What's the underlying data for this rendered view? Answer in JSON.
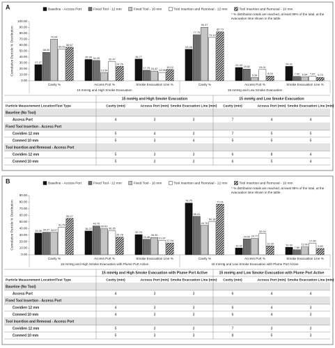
{
  "panel_labels": [
    "A",
    "B"
  ],
  "chart_data": [
    {
      "type": "bar",
      "y_label": "Cumulative Particle % Distribution",
      "note": "* % distribution totals are reached, at least 99% of the total, at the evacuation time shown in the table.",
      "categories": [
        "Cavity %",
        "Access Port %",
        "Smoke Evacuation Line %",
        "Cavity %",
        "Access Port %",
        "Smoke Evacuation Line %"
      ],
      "category_groups": [
        "15 mmHg and High Smoke Evacuation",
        "15 mmHg and Low Smoke Evacuation"
      ],
      "ylim": [
        0,
        100
      ],
      "yticks": [
        {
          "value": 0,
          "label": "0.00"
        },
        {
          "value": 10,
          "label": "10.00"
        },
        {
          "value": 20,
          "label": "20.00"
        },
        {
          "value": 30,
          "label": "30.00"
        },
        {
          "value": 40,
          "label": "40.00"
        },
        {
          "value": 50,
          "label": "50.00"
        },
        {
          "value": 60,
          "label": "60.00"
        },
        {
          "value": 70,
          "label": "70.00"
        },
        {
          "value": 80,
          "label": "80.00"
        },
        {
          "value": 90,
          "label": "90.00"
        },
        {
          "value": 100,
          "label": "100.00"
        }
      ],
      "series": [
        {
          "name": "Baseline - Access Port",
          "color": "#111111",
          "values": [
            27.27,
            35.96,
            36.77,
            53.26,
            22.43,
            24.31
          ],
          "value_labels": [
            "27.27",
            "35.96",
            "36.77",
            "53.26",
            "22.43",
            "24.31"
          ]
        },
        {
          "name": "Fixed Tool - 12 mm",
          "color": "#6e6e6e",
          "values": [
            48.0,
            34.25,
            17.75,
            77.75,
            19.82,
            7.42
          ],
          "value_labels": [
            "48.00",
            "34.25",
            "17.75",
            "77.75",
            "19.82",
            "7.42"
          ]
        },
        {
          "name": "Fixed Tool - 10 mm",
          "color": "#c4c4c4",
          "values": [
            70.04,
            13.54,
            16.42,
            90.37,
            5.34,
            6.54
          ],
          "value_labels": [
            "70.04",
            "13.54",
            "16.42",
            "90.37",
            "5.34",
            "6.54"
          ]
        },
        {
          "name": "Tool Insertion and Removal - 12 mm",
          "color": "#ffffff",
          "values": [
            53.43,
            32.47,
            13.98,
            73.13,
            19.01,
            7.87
          ],
          "value_labels": [
            "53.43",
            "32.47",
            "13.98",
            "73.13",
            "19.01",
            "7.87"
          ]
        },
        {
          "name": "Tool Insertion and Removal - 10 mm",
          "color": "#ffffff",
          "hatch": true,
          "values": [
            56.67,
            24.26,
            19.12,
            82.73,
            8.04,
            5.73
          ],
          "value_labels": [
            "56.67",
            "24.26",
            "19.12",
            "82.73",
            "8.04",
            "5.73"
          ]
        }
      ]
    },
    {
      "type": "bar",
      "y_label": "Cumulative Particle % Distribution",
      "note": "* % distribution totals are reached, at least 95% of the total, at the evacuation time shown in the table.",
      "categories": [
        "Cavity %",
        "Access Port %",
        "Smoke Evacuation Line %",
        "Cavity %",
        "Access Port %",
        "Smoke Evacuation Line %"
      ],
      "category_groups": [
        "15 mmHg and High Smoke Evacuation with Plume Port Active",
        "15 mmHg and Low Smoke Evacuation with Plume Port Active"
      ],
      "ylim": [
        0,
        90
      ],
      "yticks": [
        {
          "value": 0,
          "label": "0.00"
        },
        {
          "value": 10,
          "label": "10.00"
        },
        {
          "value": 20,
          "label": "20.00"
        },
        {
          "value": 30,
          "label": "30.00"
        },
        {
          "value": 40,
          "label": "40.00"
        },
        {
          "value": 50,
          "label": "50.00"
        },
        {
          "value": 60,
          "label": "60.00"
        },
        {
          "value": 70,
          "label": "70.00"
        },
        {
          "value": 80,
          "label": "80.00"
        },
        {
          "value": 90,
          "label": "90.00"
        }
      ],
      "series": [
        {
          "name": "Baseline - Access Port",
          "color": "#111111",
          "values": [
            33.08,
            36.22,
            30.7,
            78.75,
            10.32,
            11.33
          ],
          "value_labels": [
            "33.08",
            "36.22",
            "30.70",
            "78.75",
            "10.32",
            "11.33"
          ]
        },
        {
          "name": "Fixed Tool - 12 mm",
          "color": "#6e6e6e",
          "values": [
            34.27,
            43.79,
            23.48,
            58.41,
            24.0,
            7.6
          ],
          "value_labels": [
            "34.27",
            "43.79",
            "23.48",
            "58.41",
            "24.00",
            "7.60"
          ]
        },
        {
          "name": "Fixed Tool - 10 mm",
          "color": "#c4c4c4",
          "values": [
            34.07,
            39.63,
            26.3,
            44.76,
            24.77,
            12.0
          ],
          "value_labels": [
            "34.07",
            "39.63",
            "26.30",
            "44.76",
            "24.77",
            "12.00"
          ]
        },
        {
          "name": "Tool Insertion and Removal - 12 mm",
          "color": "#ffffff",
          "values": [
            41.79,
            36.35,
            21.87,
            50.36,
            32.04,
            17.6
          ],
          "value_labels": [
            "41.79",
            "36.35",
            "21.87",
            "50.36",
            "32.04",
            "17.60"
          ]
        },
        {
          "name": "Tool Insertion and Removal - 10 mm",
          "color": "#ffffff",
          "hatch": true,
          "values": [
            55.27,
            26.78,
            17.94,
            77.01,
            13.39,
            9.6
          ],
          "value_labels": [
            "55.27",
            "26.78",
            "17.94",
            "77.01",
            "13.39",
            "9.60"
          ]
        }
      ]
    }
  ],
  "tables": [
    {
      "header_groups": [
        "15 mmHg and High Smoke Evacuation",
        "15 mmHg and Low Smoke Evacuation"
      ],
      "columns": [
        "Particle Measurement Location/Test Type",
        "Cavity (min)",
        "Access Port (min)",
        "Smoke Evacuation Line (min)",
        "Cavity (min)",
        "Access Port (min)",
        "Smoke Evacuation Line (min)"
      ],
      "rows": [
        [
          "Baseline (No Tool)"
        ],
        [
          "Access Port",
          4,
          3,
          3,
          7,
          4,
          4
        ],
        [
          "Fixed Tool Insertion - Access Port"
        ],
        [
          "Covidien 12 mm",
          5,
          4,
          3,
          7,
          5,
          5
        ],
        [
          "Conmed 10 mm",
          5,
          3,
          4,
          5,
          5,
          5
        ],
        [
          "Tool Insertion and Removal - Access Port"
        ],
        [
          "Covidien 12 mm",
          5,
          3,
          3,
          6,
          8,
          4
        ],
        [
          "Conmed 10 mm",
          5,
          3,
          3,
          6,
          5,
          4
        ]
      ]
    },
    {
      "header_groups": [
        "15 mmHg and High Smoke Evacuation with Plume Port Active",
        "15 mmHg and Low Smoke Evacuation with Plume Port Active"
      ],
      "columns": [
        "Particle Measurement Location/Test Type",
        "Cavity (min)",
        "Access Port (min)",
        "Smoke Evacuation Line (min)",
        "Cavity (min)",
        "Access Port (min)",
        "Smoke Evacuation Line (min)"
      ],
      "rows": [
        [
          "Baseline (No Tool)"
        ],
        [
          "Access Port",
          4,
          3,
          3,
          6,
          4,
          4
        ],
        [
          "Fixed Tool Insertion - Access Port"
        ],
        [
          "Covidien 12 mm",
          4,
          3,
          3,
          6,
          4,
          3
        ],
        [
          "Conmed 10 mm",
          4,
          3,
          3,
          6,
          4,
          3
        ],
        [
          "Tool Insertion and Removal - Access Port"
        ],
        [
          "Covidien 12 mm",
          5,
          3,
          3,
          7,
          3,
          3
        ],
        [
          "Conmed 10 mm",
          5,
          3,
          3,
          8,
          5,
          3
        ]
      ]
    }
  ]
}
